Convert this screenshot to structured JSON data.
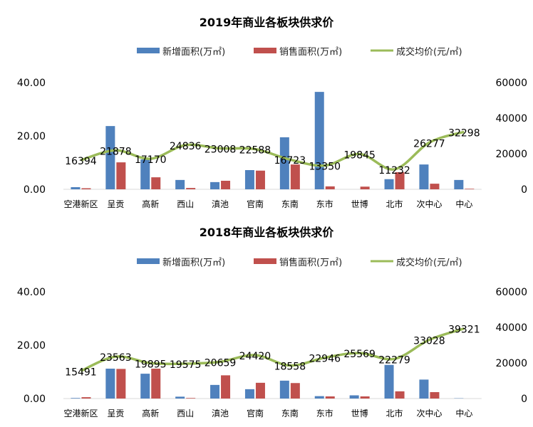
{
  "colors": {
    "new_area": "#4f81bd",
    "sold_area": "#c0504d",
    "avg_price": "#9bbb59"
  },
  "chart_data": [
    {
      "type": "bar+line",
      "title": "2019年商业各板块供求价",
      "legend": [
        "新增面积(万㎡)",
        "销售面积(万㎡)",
        "成交均价(元/㎡)"
      ],
      "legend_position": "top",
      "categories": [
        "空港新区",
        "呈贡",
        "高新",
        "西山",
        "滇池",
        "官南",
        "东南",
        "东市",
        "世博",
        "北市",
        "次中心",
        "中心"
      ],
      "y_left": {
        "range": [
          0,
          40
        ],
        "ticks": [
          "0.00",
          "20.00",
          "40.00"
        ]
      },
      "y_right": {
        "range": [
          0,
          60000
        ],
        "ticks": [
          "0",
          "20000",
          "40000",
          "60000"
        ]
      },
      "grid": false,
      "series": [
        {
          "name": "新增面积(万㎡)",
          "type": "bar",
          "axis": "left",
          "values": [
            0.8,
            23.7,
            11.2,
            3.5,
            2.7,
            7.2,
            19.5,
            36.5,
            0,
            3.8,
            9.3,
            3.5
          ]
        },
        {
          "name": "销售面积(万㎡)",
          "type": "bar",
          "axis": "left",
          "values": [
            0.4,
            10.1,
            4.5,
            0.5,
            3.2,
            7.0,
            9.3,
            1.1,
            1.0,
            6.4,
            2.1,
            0.2
          ]
        },
        {
          "name": "成交均价(元/㎡)",
          "type": "line",
          "axis": "right",
          "values": [
            16394,
            21878,
            17170,
            24836,
            23008,
            22588,
            16723,
            13350,
            19845,
            11232,
            26277,
            32298
          ]
        }
      ]
    },
    {
      "type": "bar+line",
      "title": "2018年商业各板块供求价",
      "legend": [
        "新增面积(万㎡)",
        "销售面积(万㎡)",
        "成交均价(元/㎡)"
      ],
      "legend_position": "top",
      "categories": [
        "空港新区",
        "呈贡",
        "高新",
        "西山",
        "滇池",
        "官南",
        "东南",
        "东市",
        "世博",
        "北市",
        "次中心",
        "中心"
      ],
      "y_left": {
        "range": [
          0,
          40
        ],
        "ticks": [
          "0.00",
          "20.00",
          "40.00"
        ]
      },
      "y_right": {
        "range": [
          0,
          60000
        ],
        "ticks": [
          "0",
          "20000",
          "40000",
          "60000"
        ]
      },
      "grid": false,
      "series": [
        {
          "name": "新增面积(万㎡)",
          "type": "bar",
          "axis": "left",
          "values": [
            0.2,
            11.2,
            9.3,
            0.7,
            5.1,
            3.5,
            6.7,
            0.9,
            1.2,
            12.6,
            7.1,
            0.1
          ]
        },
        {
          "name": "销售面积(万㎡)",
          "type": "bar",
          "axis": "left",
          "values": [
            0.5,
            11.1,
            11.2,
            0.2,
            8.7,
            5.9,
            5.8,
            0.8,
            0.8,
            2.7,
            2.4,
            0
          ]
        },
        {
          "name": "成交均价(元/㎡)",
          "type": "line",
          "axis": "right",
          "values": [
            15491,
            23563,
            19895,
            19575,
            20659,
            24420,
            18558,
            22946,
            25569,
            22279,
            33028,
            39321
          ]
        }
      ]
    }
  ]
}
